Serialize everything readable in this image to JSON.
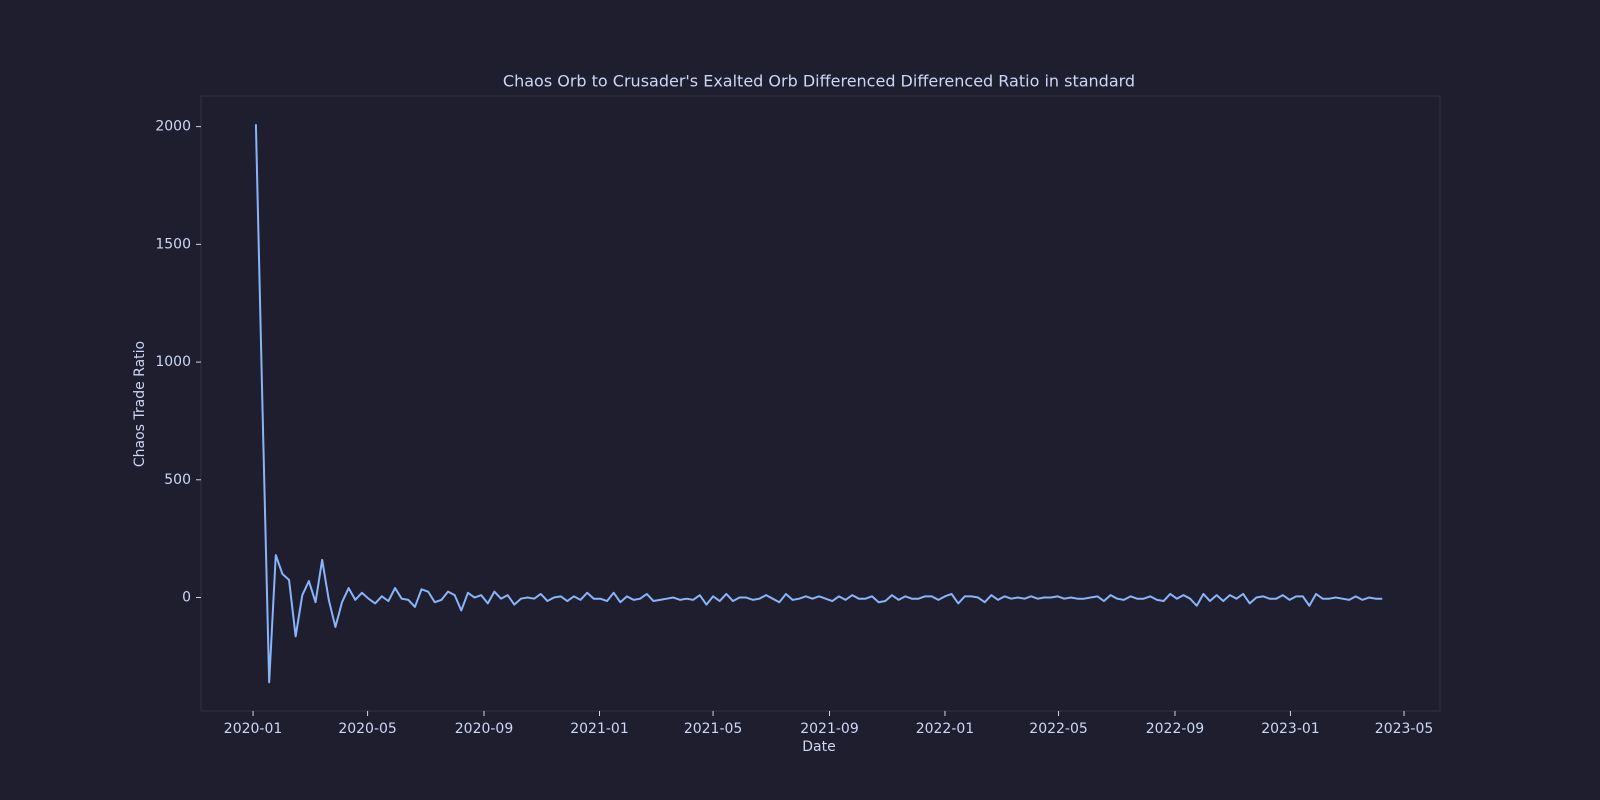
{
  "chart_data": {
    "type": "line",
    "title": "Chaos Orb to Crusader's Exalted Orb Differenced Differenced Ratio in standard",
    "xlabel": "Date",
    "ylabel": "Chaos Trade Ratio",
    "color": "#89b4fa",
    "x": [
      "2020-01-04",
      "2020-01-11",
      "2020-01-18",
      "2020-01-25",
      "2020-02-01",
      "2020-02-08",
      "2020-02-15",
      "2020-02-22",
      "2020-02-29",
      "2020-03-07",
      "2020-03-14",
      "2020-03-21",
      "2020-03-28",
      "2020-04-04",
      "2020-04-11",
      "2020-04-18",
      "2020-04-25",
      "2020-05-02",
      "2020-05-09",
      "2020-05-16",
      "2020-05-23",
      "2020-05-30",
      "2020-06-06",
      "2020-06-13",
      "2020-06-20",
      "2020-06-27",
      "2020-07-04",
      "2020-07-11",
      "2020-07-18",
      "2020-07-25",
      "2020-08-01",
      "2020-08-08",
      "2020-08-15",
      "2020-08-22",
      "2020-08-29",
      "2020-09-05",
      "2020-09-12",
      "2020-09-19",
      "2020-09-26",
      "2020-10-03",
      "2020-10-10",
      "2020-10-17",
      "2020-10-24",
      "2020-10-31",
      "2020-11-07",
      "2020-11-14",
      "2020-11-21",
      "2020-11-28",
      "2020-12-05",
      "2020-12-12",
      "2020-12-19",
      "2020-12-26",
      "2021-01-02",
      "2021-01-09",
      "2021-01-16",
      "2021-01-23",
      "2021-01-30",
      "2021-02-06",
      "2021-02-13",
      "2021-02-20",
      "2021-02-27",
      "2021-03-06",
      "2021-03-13",
      "2021-03-20",
      "2021-03-27",
      "2021-04-03",
      "2021-04-10",
      "2021-04-17",
      "2021-04-24",
      "2021-05-01",
      "2021-05-08",
      "2021-05-15",
      "2021-05-22",
      "2021-05-29",
      "2021-06-05",
      "2021-06-12",
      "2021-06-19",
      "2021-06-26",
      "2021-07-03",
      "2021-07-10",
      "2021-07-17",
      "2021-07-24",
      "2021-07-31",
      "2021-08-07",
      "2021-08-14",
      "2021-08-21",
      "2021-08-28",
      "2021-09-04",
      "2021-09-11",
      "2021-09-18",
      "2021-09-25",
      "2021-10-02",
      "2021-10-09",
      "2021-10-16",
      "2021-10-23",
      "2021-10-30",
      "2021-11-06",
      "2021-11-13",
      "2021-11-20",
      "2021-11-27",
      "2021-12-04",
      "2021-12-11",
      "2021-12-18",
      "2021-12-25",
      "2022-01-01",
      "2022-01-08",
      "2022-01-15",
      "2022-01-22",
      "2022-01-29",
      "2022-02-05",
      "2022-02-12",
      "2022-02-19",
      "2022-02-26",
      "2022-03-05",
      "2022-03-12",
      "2022-03-19",
      "2022-03-26",
      "2022-04-02",
      "2022-04-09",
      "2022-04-16",
      "2022-04-23",
      "2022-04-30",
      "2022-05-07",
      "2022-05-14",
      "2022-05-21",
      "2022-05-28",
      "2022-06-04",
      "2022-06-11",
      "2022-06-18",
      "2022-06-25",
      "2022-07-02",
      "2022-07-09",
      "2022-07-16",
      "2022-07-23",
      "2022-07-30",
      "2022-08-06",
      "2022-08-13",
      "2022-08-20",
      "2022-08-27",
      "2022-09-03",
      "2022-09-10",
      "2022-09-17",
      "2022-09-24",
      "2022-10-01",
      "2022-10-08",
      "2022-10-15",
      "2022-10-22",
      "2022-10-29",
      "2022-11-05",
      "2022-11-12",
      "2022-11-19",
      "2022-11-26",
      "2022-12-03",
      "2022-12-10",
      "2022-12-17",
      "2022-12-24",
      "2022-12-31",
      "2023-01-07",
      "2023-01-14",
      "2023-01-21",
      "2023-01-28",
      "2023-02-04",
      "2023-02-11",
      "2023-02-18",
      "2023-02-25",
      "2023-03-04",
      "2023-03-11",
      "2023-03-18",
      "2023-03-25",
      "2023-04-01",
      "2023-04-08"
    ],
    "values": [
      2010,
      800,
      -360,
      180,
      100,
      75,
      -165,
      10,
      70,
      -20,
      160,
      -10,
      -125,
      -20,
      40,
      -10,
      20,
      -5,
      -25,
      5,
      -15,
      40,
      -5,
      -10,
      -40,
      35,
      25,
      -20,
      -10,
      25,
      10,
      -55,
      20,
      0,
      10,
      -25,
      25,
      -5,
      10,
      -30,
      -5,
      0,
      -5,
      15,
      -15,
      0,
      5,
      -15,
      5,
      -10,
      20,
      -5,
      -5,
      -15,
      20,
      -20,
      5,
      -10,
      -5,
      15,
      -15,
      -10,
      -5,
      0,
      -10,
      -5,
      -10,
      10,
      -30,
      5,
      -15,
      15,
      -15,
      0,
      0,
      -10,
      -5,
      10,
      -5,
      -20,
      15,
      -10,
      -5,
      5,
      -5,
      5,
      -5,
      -15,
      5,
      -10,
      10,
      -5,
      -5,
      5,
      -20,
      -15,
      10,
      -10,
      5,
      -5,
      -5,
      5,
      5,
      -10,
      5,
      15,
      -25,
      5,
      5,
      0,
      -20,
      10,
      -10,
      5,
      -5,
      0,
      -5,
      5,
      -5,
      0,
      0,
      5,
      -5,
      0,
      -5,
      -5,
      0,
      5,
      -15,
      10,
      -5,
      -10,
      5,
      -5,
      -5,
      5,
      -10,
      -15,
      15,
      -5,
      10,
      -5,
      -35,
      15,
      -15,
      10,
      -15,
      10,
      -5,
      15,
      -25,
      0,
      5,
      -5,
      -5,
      10,
      -10,
      5,
      5,
      -35,
      15,
      -5,
      -5,
      0,
      -5,
      -10,
      5,
      -10,
      0,
      -5,
      -5
    ],
    "xlim": [
      "2019-11-07",
      "2023-06-08"
    ],
    "xticks": [
      {
        "value": "2020-01-01",
        "label": "2020-01"
      },
      {
        "value": "2020-05-01",
        "label": "2020-05"
      },
      {
        "value": "2020-09-01",
        "label": "2020-09"
      },
      {
        "value": "2021-01-01",
        "label": "2021-01"
      },
      {
        "value": "2021-05-01",
        "label": "2021-05"
      },
      {
        "value": "2021-09-01",
        "label": "2021-09"
      },
      {
        "value": "2022-01-01",
        "label": "2022-01"
      },
      {
        "value": "2022-05-01",
        "label": "2022-05"
      },
      {
        "value": "2022-09-01",
        "label": "2022-09"
      },
      {
        "value": "2023-01-01",
        "label": "2023-01"
      },
      {
        "value": "2023-05-01",
        "label": "2023-05"
      }
    ],
    "ylim": [
      -482,
      2130
    ],
    "yticks": [
      0,
      500,
      1000,
      1500,
      2000
    ]
  }
}
